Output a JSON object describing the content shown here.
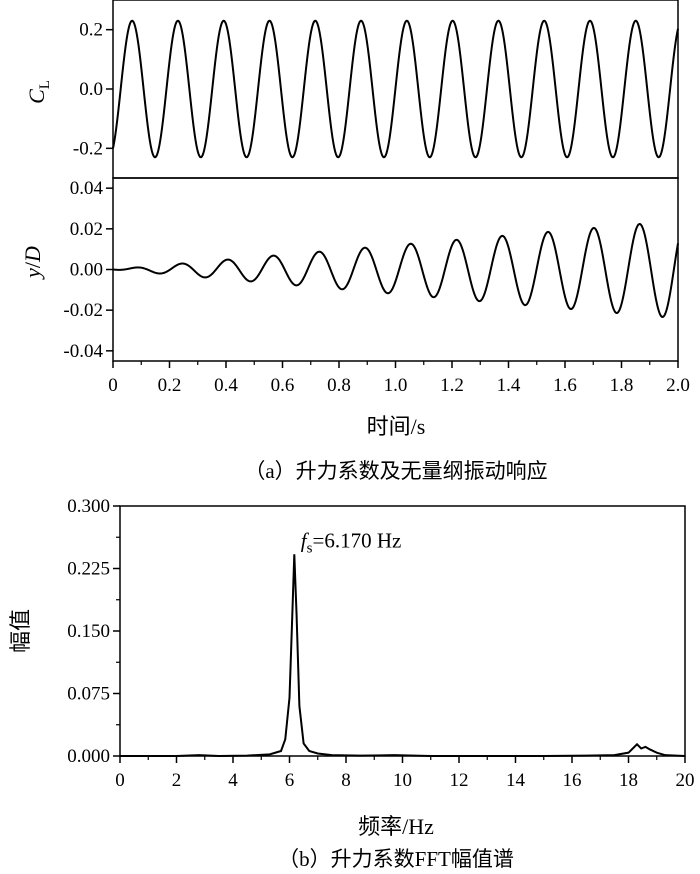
{
  "chart_data": [
    {
      "type": "line",
      "panel": "a-top",
      "ylabel_main": "C",
      "ylabel_sub": "L",
      "xlim": [
        0,
        2.0
      ],
      "ylim": [
        -0.3,
        0.3
      ],
      "yticks": [
        "0.2",
        "0.0",
        "-0.2"
      ],
      "yticks_values": [
        0.2,
        0.0,
        -0.2
      ],
      "signal": {
        "frequency_hz": 6.17,
        "amplitude": 0.23,
        "start_value": -0.2
      }
    },
    {
      "type": "line",
      "panel": "a-bottom",
      "ylabel_main": "y",
      "ylabel_sep": "/",
      "ylabel_sub": "D",
      "xlabel": "时间/s",
      "xlim": [
        0,
        2.0
      ],
      "ylim": [
        -0.045,
        0.045
      ],
      "xticks": [
        "0",
        "0.2",
        "0.4",
        "0.6",
        "0.8",
        "1.0",
        "1.2",
        "1.4",
        "1.6",
        "1.8",
        "2.0"
      ],
      "xticks_values": [
        0,
        0.2,
        0.4,
        0.6,
        0.8,
        1.0,
        1.2,
        1.4,
        1.6,
        1.8,
        2.0
      ],
      "yticks": [
        "0.04",
        "0.02",
        "0.00",
        "-0.02",
        "-0.04"
      ],
      "yticks_values": [
        0.04,
        0.02,
        0.0,
        -0.02,
        -0.04
      ],
      "signal": {
        "frequency_hz": 6.17,
        "amplitude_start": 0.0,
        "amplitude_end": 0.024
      },
      "caption": "（a）升力系数及无量纲振动响应"
    },
    {
      "type": "line",
      "panel": "b",
      "xlabel": "频率/Hz",
      "ylabel": "幅值",
      "xlim": [
        0,
        20
      ],
      "ylim": [
        0,
        0.3
      ],
      "xticks": [
        "0",
        "2",
        "4",
        "6",
        "8",
        "10",
        "12",
        "14",
        "16",
        "18",
        "20"
      ],
      "xticks_values": [
        0,
        2,
        4,
        6,
        8,
        10,
        12,
        14,
        16,
        18,
        20
      ],
      "yticks": [
        "0.300",
        "0.225",
        "0.150",
        "0.075",
        "0.000"
      ],
      "yticks_values": [
        0.3,
        0.225,
        0.15,
        0.075,
        0.0
      ],
      "x": [
        0,
        1,
        2,
        2.8,
        3.5,
        4.5,
        5.3,
        5.7,
        5.85,
        6.0,
        6.1,
        6.17,
        6.25,
        6.35,
        6.5,
        6.7,
        7.0,
        7.5,
        8.5,
        9.7,
        11,
        13,
        15,
        16.5,
        17.5,
        18.0,
        18.3,
        18.45,
        18.6,
        18.75,
        19.0,
        19.3,
        20
      ],
      "y": [
        0.0,
        0.0,
        0.0,
        0.001,
        0.0,
        0.0005,
        0.002,
        0.006,
        0.02,
        0.07,
        0.17,
        0.242,
        0.17,
        0.06,
        0.015,
        0.006,
        0.003,
        0.001,
        0.0005,
        0.001,
        0.0,
        0.0,
        0.0,
        0.0005,
        0.001,
        0.004,
        0.014,
        0.009,
        0.011,
        0.008,
        0.004,
        0.001,
        0.0
      ],
      "peak_label_main": "f",
      "peak_label_sub": "s",
      "peak_label_rest": "=6.170 Hz",
      "peak_label_anchor": {
        "x": 6.4,
        "y": 0.25
      },
      "caption": "（b）升力系数FFT幅值谱"
    }
  ]
}
